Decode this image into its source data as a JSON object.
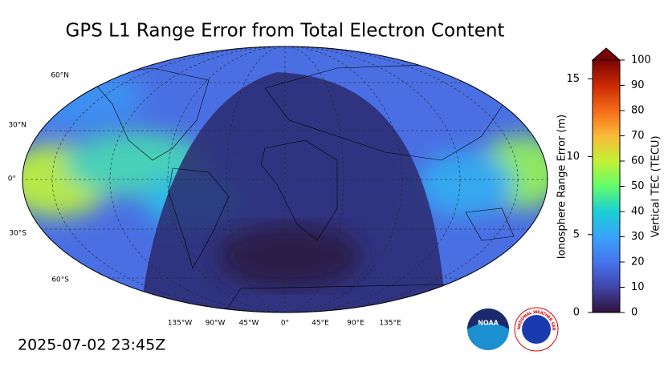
{
  "title": "GPS L1 Range Error from Total Electron Content",
  "timestamp": "2025-07-02 23:45Z",
  "map": {
    "lat_labels": [
      "60°N",
      "30°N",
      "0°",
      "30°S",
      "60°S"
    ],
    "lon_labels": [
      "135°W",
      "90°W",
      "45°W",
      "0°",
      "45°E",
      "90°E",
      "135°E"
    ]
  },
  "colorbar": {
    "label": "Vertical TEC (TECU)",
    "lim": [
      0,
      100
    ],
    "ticks": [
      0,
      10,
      20,
      30,
      40,
      50,
      60,
      70,
      80,
      90,
      100
    ],
    "range_label": "Ionosphere Range Error (m)",
    "range_lim": [
      0,
      16.2
    ],
    "range_ticks": [
      0,
      5,
      10,
      15
    ]
  },
  "logos": {
    "noaa": "NOAA",
    "nws": "NATIONAL WEATHER SERVICE"
  }
}
